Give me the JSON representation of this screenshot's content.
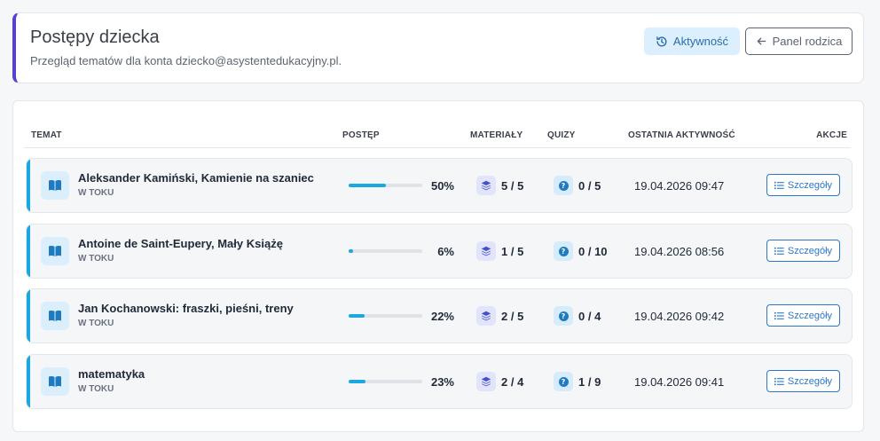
{
  "header": {
    "title": "Postępy dziecka",
    "subtitle": "Przegląd tematów dla konta dziecko@asystentedukacyjny.pl.",
    "activity_button": "Aktywność",
    "parent_panel_button": "Panel rodzica"
  },
  "table": {
    "columns": {
      "topic": "TEMAT",
      "progress": "POSTĘP",
      "materials": "MATERIAŁY",
      "quizzes": "QUIZY",
      "last_activity": "OSTATNIA AKTYWNOŚĆ",
      "actions": "AKCJE"
    },
    "details_label": "Szczegóły",
    "rows": [
      {
        "topic": "Aleksander Kamiński, Kamienie na szaniec",
        "status": "W TOKU",
        "progress": 50,
        "progress_label": "50%",
        "materials": "5 / 5",
        "quizzes": "0 / 5",
        "last_activity": "19.04.2026 09:47"
      },
      {
        "topic": "Antoine de Saint-Eupery, Mały Książę",
        "status": "W TOKU",
        "progress": 6,
        "progress_label": "6%",
        "materials": "1 / 5",
        "quizzes": "0 / 10",
        "last_activity": "19.04.2026 08:56"
      },
      {
        "topic": "Jan Kochanowski: fraszki, pieśni, treny",
        "status": "W TOKU",
        "progress": 22,
        "progress_label": "22%",
        "materials": "2 / 5",
        "quizzes": "0 / 4",
        "last_activity": "19.04.2026 09:42"
      },
      {
        "topic": "matematyka",
        "status": "W TOKU",
        "progress": 23,
        "progress_label": "23%",
        "materials": "2 / 4",
        "quizzes": "1 / 9",
        "last_activity": "19.04.2026 09:41"
      }
    ]
  },
  "colors": {
    "accent_header": "#5b3fd1",
    "accent_row": "#1ba8e0",
    "link_blue": "#2a78c7"
  },
  "icons": {
    "activity": "history-icon",
    "parent_panel": "arrow-left-icon",
    "topic": "book-open-icon",
    "materials": "layers-icon",
    "quizzes": "question-circle-icon",
    "details": "list-icon"
  }
}
